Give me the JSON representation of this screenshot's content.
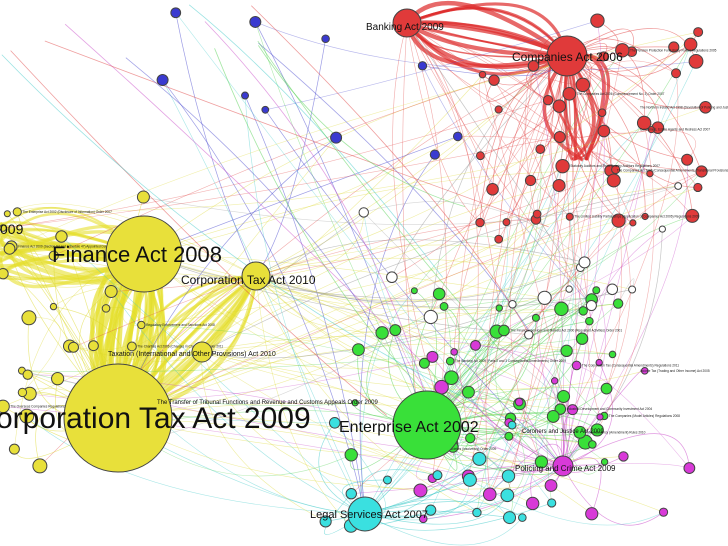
{
  "colors": {
    "companies": "#e03a3a",
    "tax": "#e8e03a",
    "enterprise": "#39e039",
    "legal": "#3ae0e0",
    "policing": "#d83ad8",
    "parliament": "#3a3ad0",
    "other": "#ffffff"
  },
  "hubs": [
    {
      "id": "corp-tax-2009",
      "label": "orporation Tax Act 2009",
      "group": "tax"
    },
    {
      "id": "finance-2008",
      "label": "Finance Act 2008",
      "group": "tax"
    },
    {
      "id": "corp-tax-2010",
      "label": "Corporation Tax Act 2010",
      "group": "tax"
    },
    {
      "id": "enterprise-2002",
      "label": "Enterprise Act 2002",
      "group": "enterprise"
    },
    {
      "id": "companies-2006",
      "label": "Companies Act 2006",
      "group": "companies"
    },
    {
      "id": "banking-2009",
      "label": "Banking Act 2009",
      "group": "companies"
    },
    {
      "id": "legal-services-2007",
      "label": "Legal Services Act 2007",
      "group": "legal"
    },
    {
      "id": "policing-crime-2009",
      "label": "Policing and Crime Act 2009",
      "group": "policing"
    },
    {
      "id": "taxation-intl",
      "label": "Taxation (International and Other Provisions) Act 2010",
      "group": "tax"
    }
  ],
  "labels": {
    "taxation_intl": "Taxation (International and Other Provisions) Act 2010",
    "transfer_tribunal": "The Transfer of Tribunal Functions and Revenue and Customs Appeals Order 2009",
    "coroners_justice": "Coroners and Justice Act 2009",
    "partial_009": "009"
  },
  "small_labels": [
    "The Companies Act 2006 (Consequential Amendments, Transitional Provisions and Savings) Order 2008",
    "The Companies Act 2006 (Commencement No. 3) Order 2007",
    "Statutory Auditors and Third Country Auditors Regulations 2007",
    "The Northern Ireland Act 1998 (Devolution of Policing and Justice Functions) Order 2010",
    "The Pension Protection Fund (Entry Rules) Regulations 2005",
    "The Limited Liability Partnerships (Application of Companies Act 2006) Regulations 2009",
    "Consumers, Estate Agents and Redress Act 2007",
    "The Charities Act 2006 (Changes in Charity Law) Order 2011",
    "Regulatory Enforcement and Sanctions Act 2008",
    "The Overseas Companies Regulations 2009",
    "Finance Act 2009 (Section 94 and Schedule 47) Appointed Day Order 2011",
    "The Enterprise Act 2002 (Disclosure of Information) Order 2007",
    "Industrial Development and Community Investment Act 2004",
    "The Building Societies (Insolvency) Order 2009",
    "The Banking Act 2009 (Parts 2 and 3 Consequential Amendments) Order 2009",
    "The Companies (Model Articles) Regulations 2008",
    "The Financial Services and Markets Act 2000 (Regulated Activities) Order 2001",
    "The Insolvency (Amendment) Rules 2010",
    "The Corporation Tax (Consequential Amendments) Regulations 2011",
    "Income Tax (Trading and Other Income) Act 2005"
  ]
}
